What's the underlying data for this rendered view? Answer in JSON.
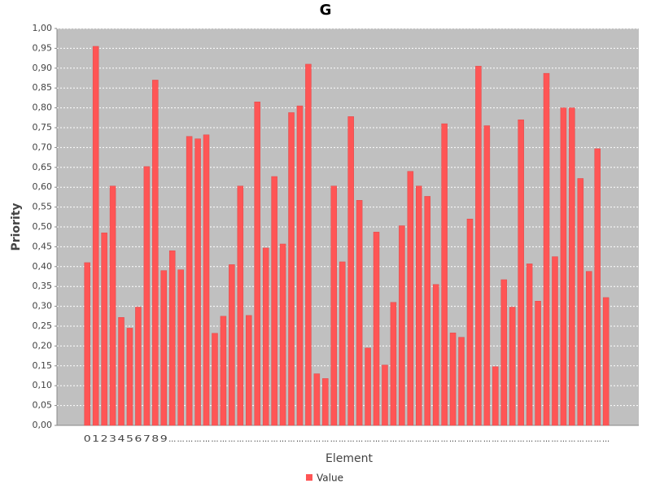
{
  "chart_data": {
    "type": "bar",
    "title": "G",
    "x_label": "Element",
    "y_label": "Priority",
    "legend": "bottom",
    "series": [
      {
        "name": "Value",
        "color": "#ff5555",
        "values": [
          0.41,
          0.955,
          0.485,
          0.603,
          0.272,
          0.245,
          0.298,
          0.652,
          0.87,
          0.39,
          0.44,
          0.392,
          0.728,
          0.722,
          0.732,
          0.232,
          0.275,
          0.405,
          0.603,
          0.277,
          0.815,
          0.447,
          0.627,
          0.457,
          0.788,
          0.805,
          0.91,
          0.13,
          0.118,
          0.603,
          0.412,
          0.778,
          0.567,
          0.195,
          0.487,
          0.152,
          0.31,
          0.503,
          0.64,
          0.603,
          0.577,
          0.355,
          0.76,
          0.233,
          0.222,
          0.52,
          0.905,
          0.755,
          0.148,
          0.367,
          0.298,
          0.77,
          0.407,
          0.313,
          0.887,
          0.425,
          0.8,
          0.8,
          0.622,
          0.388,
          0.697,
          0.322
        ]
      }
    ],
    "categories": [
      "0",
      "1",
      "2",
      "3",
      "4",
      "5",
      "6",
      "7",
      "8",
      "9",
      "...",
      "...",
      "...",
      "...",
      "...",
      "...",
      "...",
      "...",
      "...",
      "...",
      "...",
      "...",
      "...",
      "...",
      "...",
      "...",
      "...",
      "...",
      "...",
      "...",
      "...",
      "...",
      "...",
      "...",
      "...",
      "...",
      "...",
      "...",
      "...",
      "...",
      "...",
      "...",
      "...",
      "...",
      "...",
      "...",
      "...",
      "...",
      "...",
      "...",
      "...",
      "...",
      "...",
      "...",
      "...",
      "...",
      "...",
      "...",
      "...",
      "...",
      "...",
      "..."
    ],
    "ylim": [
      0,
      1
    ],
    "yticks": [
      {
        "value": 0,
        "label": "0,00"
      },
      {
        "value": 0.05,
        "label": "0,05"
      },
      {
        "value": 0.1,
        "label": "0,10"
      },
      {
        "value": 0.15,
        "label": "0,15"
      },
      {
        "value": 0.2,
        "label": "0,20"
      },
      {
        "value": 0.25,
        "label": "0,25"
      },
      {
        "value": 0.3,
        "label": "0,30"
      },
      {
        "value": 0.35,
        "label": "0,35"
      },
      {
        "value": 0.4,
        "label": "0,40"
      },
      {
        "value": 0.45,
        "label": "0,45"
      },
      {
        "value": 0.5,
        "label": "0,50"
      },
      {
        "value": 0.55,
        "label": "0,55"
      },
      {
        "value": 0.6,
        "label": "0,60"
      },
      {
        "value": 0.65,
        "label": "0,65"
      },
      {
        "value": 0.7,
        "label": "0,70"
      },
      {
        "value": 0.75,
        "label": "0,75"
      },
      {
        "value": 0.8,
        "label": "0,80"
      },
      {
        "value": 0.85,
        "label": "0,85"
      },
      {
        "value": 0.9,
        "label": "0,90"
      },
      {
        "value": 0.95,
        "label": "0,95"
      },
      {
        "value": 1,
        "label": "1,00"
      }
    ],
    "grid": true
  }
}
